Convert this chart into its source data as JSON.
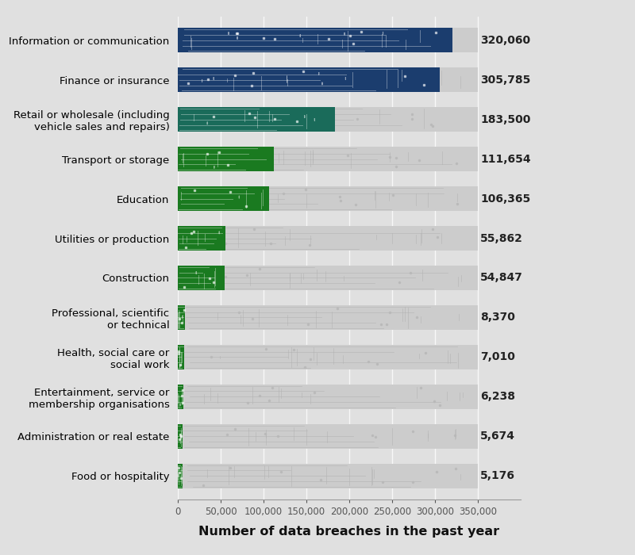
{
  "categories": [
    "Information or communication",
    "Finance or insurance",
    "Retail or wholesale (including\nvehicle sales and repairs)",
    "Transport or storage",
    "Education",
    "Utilities or production",
    "Construction",
    "Professional, scientific\nor technical",
    "Health, social care or\nsocial work",
    "Entertainment, service or\nmembership organisations",
    "Administration or real estate",
    "Food or hospitality"
  ],
  "values": [
    320060,
    305785,
    183500,
    111654,
    106365,
    55862,
    54847,
    8370,
    7010,
    6238,
    5674,
    5176
  ],
  "bar_colors": [
    "#1b3d6e",
    "#1b3d6e",
    "#1a6b5a",
    "#1a7a20",
    "#1a7a20",
    "#1a7a20",
    "#1a7a20",
    "#1a7a20",
    "#1a7a20",
    "#1a7a20",
    "#1a7a20",
    "#1a7a20"
  ],
  "bg_color": "#e0e0e0",
  "bar_bg_color": "#cccccc",
  "xlabel": "Number of data breaches in the past year",
  "xlim": [
    0,
    350000
  ],
  "xticks": [
    0,
    50000,
    100000,
    150000,
    200000,
    250000,
    300000,
    350000
  ],
  "xtick_labels": [
    "0",
    "50,000",
    "100,000",
    "150,000",
    "200,000",
    "250,000",
    "300,000",
    "350,000"
  ],
  "value_fontsize": 10,
  "label_fontsize": 9.5
}
